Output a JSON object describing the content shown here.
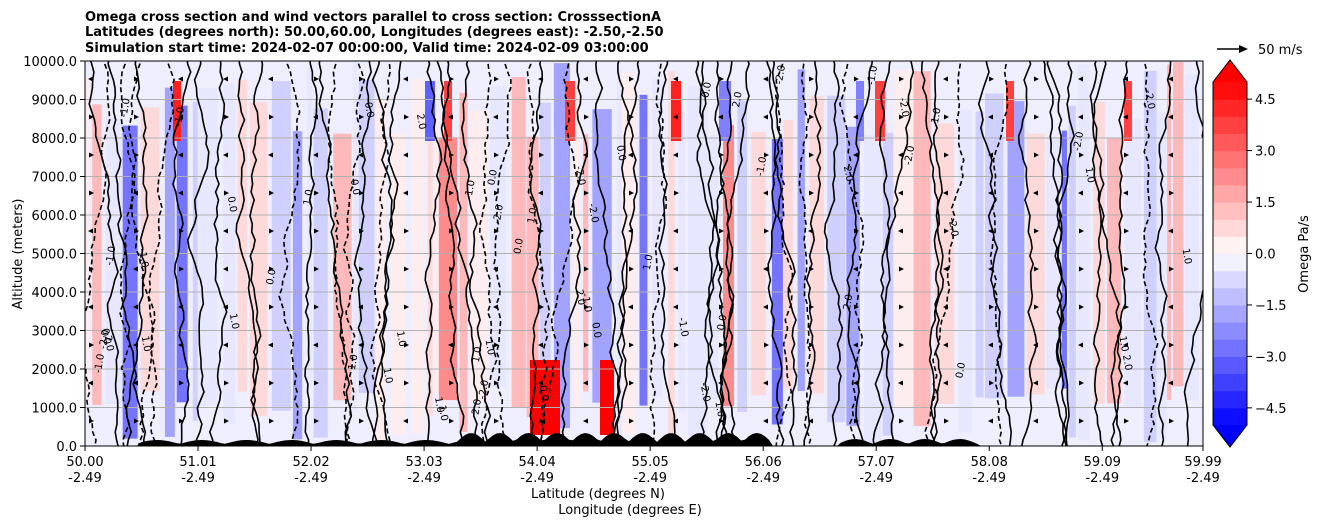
{
  "chart_data": {
    "type": "heatmap",
    "title_lines": [
      "Omega cross section and wind vectors parallel to cross section: CrosssectionA",
      "Latitudes (degrees north): 50.00,60.00, Longitudes (degrees east): -2.50,-2.50",
      "Simulation start time: 2024-02-07 00:00:00, Valid time: 2024-02-09 03:00:00"
    ],
    "xlabel_lines": [
      "Latitude (degrees N)",
      "Longitude (degrees E)"
    ],
    "ylabel": "Altitude (meters)",
    "x_ticks": [
      {
        "lat": "50.00",
        "lon": "-2.49"
      },
      {
        "lat": "51.01",
        "lon": "-2.49"
      },
      {
        "lat": "52.02",
        "lon": "-2.49"
      },
      {
        "lat": "53.03",
        "lon": "-2.49"
      },
      {
        "lat": "54.04",
        "lon": "-2.49"
      },
      {
        "lat": "55.05",
        "lon": "-2.49"
      },
      {
        "lat": "56.06",
        "lon": "-2.49"
      },
      {
        "lat": "57.07",
        "lon": "-2.49"
      },
      {
        "lat": "58.08",
        "lon": "-2.49"
      },
      {
        "lat": "59.09",
        "lon": "-2.49"
      },
      {
        "lat": "59.99",
        "lon": "-2.49"
      }
    ],
    "x_range": [
      50.0,
      59.99
    ],
    "y_ticks": [
      "0.0",
      "1000.0",
      "2000.0",
      "3000.0",
      "4000.0",
      "5000.0",
      "6000.0",
      "7000.0",
      "8000.0",
      "9000.0",
      "10000.0"
    ],
    "y_range": [
      0,
      10000
    ],
    "grid": "horizontal",
    "colorbar": {
      "label": "Omega Pa/s",
      "ticks": [
        "4.5",
        "3.0",
        "1.5",
        "0.0",
        "-1.5",
        "-3.0",
        "-4.5"
      ],
      "range": [
        -5,
        5
      ],
      "extend": "both",
      "colormap": "bwr"
    },
    "quiver_key": {
      "label": "50 m/s"
    },
    "contour_labels": [
      "0.0",
      "1.0",
      "-1.0",
      "2.0",
      "-2.0"
    ],
    "colors": {
      "positive": "#ff0000",
      "negative": "#0000ff",
      "zero": "#ffffff",
      "contour": "#000000",
      "grid": "#b0b0b0"
    }
  }
}
